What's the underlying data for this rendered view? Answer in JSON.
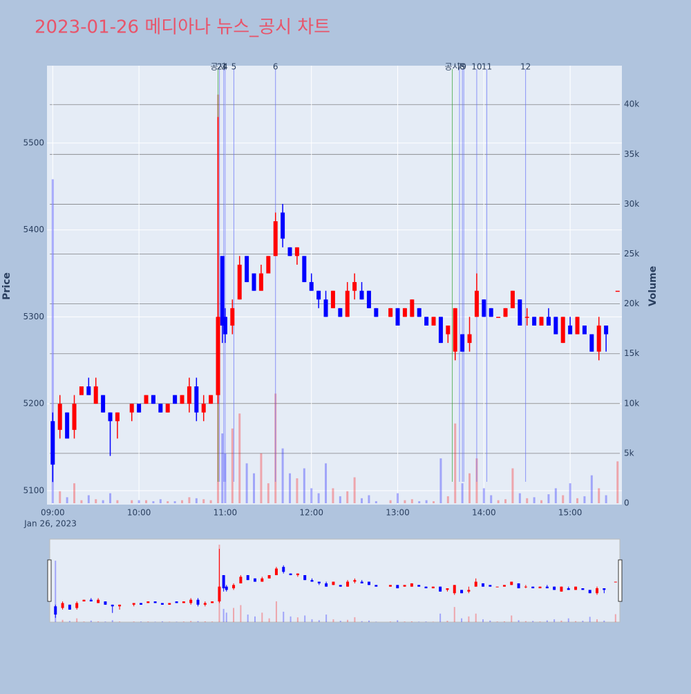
{
  "chart_data": {
    "type": "candlestick",
    "title": "2023-01-26 메디아나 뉴스_공시 차트",
    "yaxis_title": "Price",
    "y2axis_title": "Volume",
    "x_date_label": "Jan 26, 2023",
    "increasing_color": "#ff0000",
    "decreasing_color": "#0000ff",
    "xlim": [
      "2023-01-26 08:56",
      "2023-01-26 15:36"
    ],
    "xticks": [
      {
        "value": "2023-01-26 09:00",
        "label": "09:00"
      },
      {
        "value": "2023-01-26 10:00",
        "label": "10:00"
      },
      {
        "value": "2023-01-26 11:00",
        "label": "11:00"
      },
      {
        "value": "2023-01-26 12:00",
        "label": "12:00"
      },
      {
        "value": "2023-01-26 13:00",
        "label": "13:00"
      },
      {
        "value": "2023-01-26 14:00",
        "label": "14:00"
      },
      {
        "value": "2023-01-26 15:00",
        "label": "15:00"
      }
    ],
    "ylim": [
      5084,
      5589
    ],
    "yticks": [
      5100,
      5200,
      5300,
      5400,
      5500
    ],
    "y2lim": [
      0,
      43900
    ],
    "y2ticks": [
      0,
      {
        "value": 5000,
        "label": "5k"
      },
      {
        "value": 10000,
        "label": "10k"
      },
      {
        "value": 15000,
        "label": "15k"
      },
      {
        "value": 20000,
        "label": "20k"
      },
      {
        "value": 25000,
        "label": "25k"
      },
      {
        "value": 30000,
        "label": "30k"
      },
      {
        "value": 35000,
        "label": "35k"
      },
      {
        "value": 40000,
        "label": "40k"
      }
    ],
    "x": [
      "2023-01-26 09:00",
      "2023-01-26 09:05",
      "2023-01-26 09:10",
      "2023-01-26 09:15",
      "2023-01-26 09:20",
      "2023-01-26 09:25",
      "2023-01-26 09:30",
      "2023-01-26 09:35",
      "2023-01-26 09:40",
      "2023-01-26 09:45",
      "2023-01-26 09:55",
      "2023-01-26 10:00",
      "2023-01-26 10:05",
      "2023-01-26 10:10",
      "2023-01-26 10:15",
      "2023-01-26 10:20",
      "2023-01-26 10:25",
      "2023-01-26 10:30",
      "2023-01-26 10:35",
      "2023-01-26 10:40",
      "2023-01-26 10:45",
      "2023-01-26 10:50",
      "2023-01-26 10:55",
      "2023-01-26 10:58",
      "2023-01-26 11:00",
      "2023-01-26 11:05",
      "2023-01-26 11:10",
      "2023-01-26 11:15",
      "2023-01-26 11:20",
      "2023-01-26 11:25",
      "2023-01-26 11:30",
      "2023-01-26 11:35",
      "2023-01-26 11:40",
      "2023-01-26 11:45",
      "2023-01-26 11:50",
      "2023-01-26 11:55",
      "2023-01-26 12:00",
      "2023-01-26 12:05",
      "2023-01-26 12:10",
      "2023-01-26 12:15",
      "2023-01-26 12:20",
      "2023-01-26 12:25",
      "2023-01-26 12:30",
      "2023-01-26 12:35",
      "2023-01-26 12:40",
      "2023-01-26 12:45",
      "2023-01-26 12:55",
      "2023-01-26 13:00",
      "2023-01-26 13:05",
      "2023-01-26 13:10",
      "2023-01-26 13:15",
      "2023-01-26 13:20",
      "2023-01-26 13:25",
      "2023-01-26 13:30",
      "2023-01-26 13:35",
      "2023-01-26 13:40",
      "2023-01-26 13:45",
      "2023-01-26 13:50",
      "2023-01-26 13:55",
      "2023-01-26 14:00",
      "2023-01-26 14:05",
      "2023-01-26 14:10",
      "2023-01-26 14:15",
      "2023-01-26 14:20",
      "2023-01-26 14:25",
      "2023-01-26 14:30",
      "2023-01-26 14:35",
      "2023-01-26 14:40",
      "2023-01-26 14:45",
      "2023-01-26 14:50",
      "2023-01-26 14:55",
      "2023-01-26 15:00",
      "2023-01-26 15:05",
      "2023-01-26 15:10",
      "2023-01-26 15:15",
      "2023-01-26 15:20",
      "2023-01-26 15:25",
      "2023-01-26 15:33"
    ],
    "open": [
      5180,
      5170,
      5190,
      5170,
      5210,
      5220,
      5200,
      5210,
      5190,
      5180,
      5190,
      5200,
      5200,
      5210,
      5200,
      5190,
      5210,
      5200,
      5200,
      5220,
      5190,
      5200,
      5210,
      5370,
      5300,
      5290,
      5320,
      5370,
      5350,
      5330,
      5350,
      5370,
      5420,
      5380,
      5370,
      5370,
      5340,
      5330,
      5320,
      5310,
      5310,
      5300,
      5330,
      5330,
      5330,
      5310,
      5300,
      5310,
      5300,
      5300,
      5310,
      5300,
      5290,
      5300,
      5280,
      5260,
      5280,
      5270,
      5300,
      5320,
      5310,
      5300,
      5300,
      5310,
      5320,
      5300,
      5300,
      5290,
      5300,
      5300,
      5270,
      5290,
      5280,
      5290,
      5280,
      5260,
      5290,
      5330
    ],
    "high": [
      5190,
      5210,
      5190,
      5210,
      5220,
      5230,
      5230,
      5210,
      5190,
      5190,
      5200,
      5200,
      5210,
      5210,
      5200,
      5200,
      5210,
      5210,
      5230,
      5230,
      5210,
      5210,
      5530,
      5370,
      5310,
      5320,
      5370,
      5370,
      5350,
      5360,
      5370,
      5420,
      5430,
      5380,
      5380,
      5370,
      5350,
      5330,
      5330,
      5330,
      5310,
      5340,
      5350,
      5340,
      5330,
      5310,
      5310,
      5310,
      5310,
      5320,
      5310,
      5300,
      5300,
      5300,
      5290,
      5310,
      5280,
      5300,
      5350,
      5320,
      5310,
      5300,
      5310,
      5330,
      5320,
      5310,
      5300,
      5300,
      5310,
      5300,
      5300,
      5300,
      5300,
      5290,
      5280,
      5300,
      5290,
      5330
    ],
    "low": [
      5110,
      5160,
      5160,
      5160,
      5210,
      5210,
      5200,
      5190,
      5140,
      5160,
      5180,
      5190,
      5200,
      5200,
      5190,
      5190,
      5200,
      5200,
      5190,
      5180,
      5180,
      5200,
      5200,
      5270,
      5270,
      5280,
      5320,
      5340,
      5330,
      5330,
      5350,
      5370,
      5380,
      5370,
      5360,
      5340,
      5330,
      5310,
      5300,
      5310,
      5300,
      5300,
      5320,
      5320,
      5310,
      5300,
      5300,
      5290,
      5300,
      5300,
      5300,
      5290,
      5290,
      5270,
      5270,
      5250,
      5260,
      5260,
      5300,
      5300,
      5300,
      5300,
      5300,
      5310,
      5290,
      5290,
      5290,
      5290,
      5290,
      5280,
      5270,
      5280,
      5280,
      5280,
      5260,
      5250,
      5260,
      5330
    ],
    "close": [
      5130,
      5200,
      5160,
      5200,
      5220,
      5210,
      5220,
      5190,
      5180,
      5190,
      5200,
      5190,
      5210,
      5200,
      5190,
      5200,
      5200,
      5210,
      5220,
      5190,
      5200,
      5210,
      5300,
      5290,
      5280,
      5310,
      5360,
      5340,
      5330,
      5350,
      5370,
      5410,
      5390,
      5370,
      5380,
      5340,
      5330,
      5320,
      5300,
      5330,
      5300,
      5330,
      5340,
      5320,
      5310,
      5300,
      5310,
      5290,
      5310,
      5320,
      5300,
      5290,
      5300,
      5270,
      5290,
      5310,
      5260,
      5280,
      5330,
      5300,
      5300,
      5300,
      5310,
      5330,
      5290,
      5300,
      5290,
      5300,
      5290,
      5280,
      5300,
      5280,
      5300,
      5280,
      5260,
      5290,
      5280,
      5330
    ],
    "volume": [
      32500,
      1200,
      600,
      2000,
      300,
      800,
      400,
      300,
      1000,
      300,
      300,
      300,
      300,
      200,
      400,
      200,
      200,
      300,
      600,
      500,
      400,
      300,
      41000,
      7000,
      5000,
      7500,
      9000,
      4000,
      3000,
      5000,
      2000,
      11000,
      5500,
      3000,
      2500,
      3500,
      1500,
      1000,
      4000,
      1500,
      700,
      1200,
      2600,
      500,
      800,
      200,
      300,
      1000,
      300,
      400,
      200,
      300,
      200,
      4500,
      700,
      8000,
      2000,
      3000,
      4500,
      1500,
      800,
      300,
      400,
      3500,
      1000,
      500,
      600,
      300,
      900,
      1500,
      800,
      2000,
      500,
      700,
      2800,
      1500,
      800,
      4200
    ],
    "events": [
      {
        "x": "2023-01-26 10:55",
        "label": "공시",
        "color": "#2ca02c"
      },
      {
        "x": "2023-01-26 10:56",
        "label": "2",
        "color": "#636efa"
      },
      {
        "x": "2023-01-26 10:59",
        "label": "3",
        "color": "#636efa"
      },
      {
        "x": "2023-01-26 11:00",
        "label": "4",
        "color": "#636efa"
      },
      {
        "x": "2023-01-26 11:06",
        "label": "5",
        "color": "#636efa"
      },
      {
        "x": "2023-01-26 11:35",
        "label": "6",
        "color": "#636efa"
      },
      {
        "x": "2023-01-26 13:38",
        "label": "공시",
        "color": "#2ca02c"
      },
      {
        "x": "2023-01-26 13:43",
        "label": "7",
        "color": "#636efa"
      },
      {
        "x": "2023-01-26 13:45",
        "label": "8",
        "color": "#636efa"
      },
      {
        "x": "2023-01-26 13:46",
        "label": "9",
        "color": "#636efa"
      },
      {
        "x": "2023-01-26 13:55",
        "label": "10",
        "color": "#636efa"
      },
      {
        "x": "2023-01-26 14:02",
        "label": "11",
        "color": "#636efa"
      },
      {
        "x": "2023-01-26 14:29",
        "label": "12",
        "color": "#636efa"
      }
    ]
  }
}
